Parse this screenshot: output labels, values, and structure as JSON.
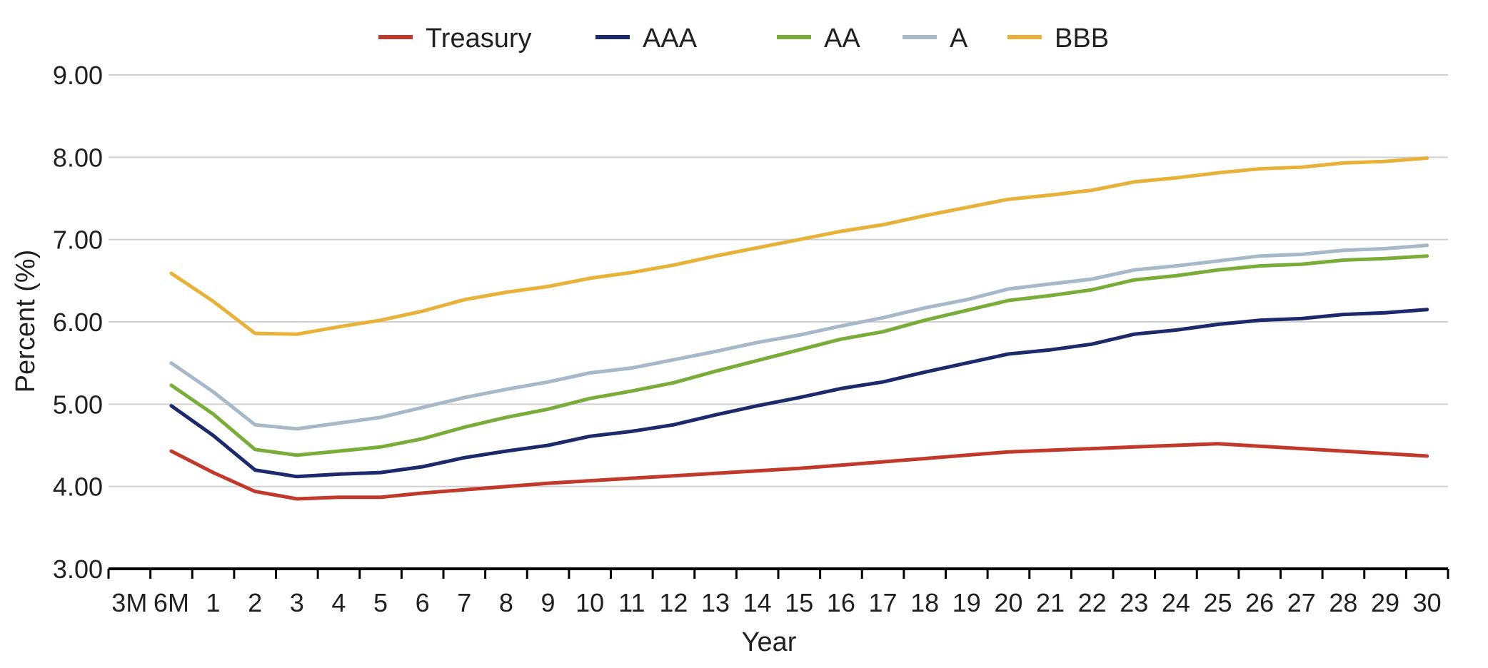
{
  "chart_data": {
    "type": "line",
    "title": "",
    "xlabel": "Year",
    "ylabel": "Percent (%)",
    "ylim": [
      3.0,
      9.0
    ],
    "yticks": [
      "3.00",
      "4.00",
      "5.00",
      "6.00",
      "7.00",
      "8.00",
      "9.00"
    ],
    "grid": true,
    "legend_position": "top",
    "categories": [
      "3M",
      "6M",
      "1",
      "2",
      "3",
      "4",
      "5",
      "6",
      "7",
      "8",
      "9",
      "10",
      "11",
      "12",
      "13",
      "14",
      "15",
      "16",
      "17",
      "18",
      "19",
      "20",
      "21",
      "22",
      "23",
      "24",
      "25",
      "26",
      "27",
      "28",
      "29",
      "30"
    ],
    "series": [
      {
        "name": "Treasury",
        "color": "#c0392b",
        "values": [
          null,
          4.43,
          4.17,
          3.94,
          3.85,
          3.87,
          3.87,
          3.92,
          3.96,
          4.0,
          4.04,
          4.07,
          4.1,
          4.13,
          4.16,
          4.19,
          4.22,
          4.26,
          4.3,
          4.34,
          4.38,
          4.42,
          4.44,
          4.46,
          4.48,
          4.5,
          4.52,
          4.49,
          4.46,
          4.43,
          4.4,
          4.37
        ]
      },
      {
        "name": "AAA",
        "color": "#1c2a6b",
        "values": [
          null,
          4.98,
          4.62,
          4.2,
          4.12,
          4.15,
          4.17,
          4.24,
          4.35,
          4.43,
          4.5,
          4.61,
          4.67,
          4.75,
          4.87,
          4.98,
          5.08,
          5.19,
          5.27,
          5.39,
          5.5,
          5.61,
          5.66,
          5.73,
          5.85,
          5.9,
          5.97,
          6.02,
          6.04,
          6.09,
          6.11,
          6.15
        ]
      },
      {
        "name": "AA",
        "color": "#7aac3a",
        "values": [
          null,
          5.23,
          4.88,
          4.45,
          4.38,
          4.43,
          4.48,
          4.58,
          4.72,
          4.84,
          4.94,
          5.07,
          5.16,
          5.26,
          5.4,
          5.53,
          5.66,
          5.79,
          5.88,
          6.02,
          6.14,
          6.26,
          6.32,
          6.39,
          6.51,
          6.56,
          6.63,
          6.68,
          6.7,
          6.75,
          6.77,
          6.8
        ]
      },
      {
        "name": "A",
        "color": "#a7b8c8",
        "values": [
          null,
          5.5,
          5.15,
          4.75,
          4.7,
          4.77,
          4.84,
          4.96,
          5.08,
          5.18,
          5.27,
          5.38,
          5.44,
          5.54,
          5.64,
          5.75,
          5.84,
          5.95,
          6.05,
          6.17,
          6.27,
          6.4,
          6.46,
          6.52,
          6.63,
          6.68,
          6.74,
          6.8,
          6.82,
          6.87,
          6.89,
          6.93
        ]
      },
      {
        "name": "BBB",
        "color": "#e8b23a",
        "values": [
          null,
          6.59,
          6.25,
          5.86,
          5.85,
          5.94,
          6.02,
          6.13,
          6.27,
          6.36,
          6.43,
          6.53,
          6.6,
          6.69,
          6.8,
          6.9,
          7.0,
          7.1,
          7.18,
          7.29,
          7.39,
          7.49,
          7.54,
          7.6,
          7.7,
          7.75,
          7.81,
          7.86,
          7.88,
          7.93,
          7.95,
          7.99
        ]
      }
    ]
  }
}
